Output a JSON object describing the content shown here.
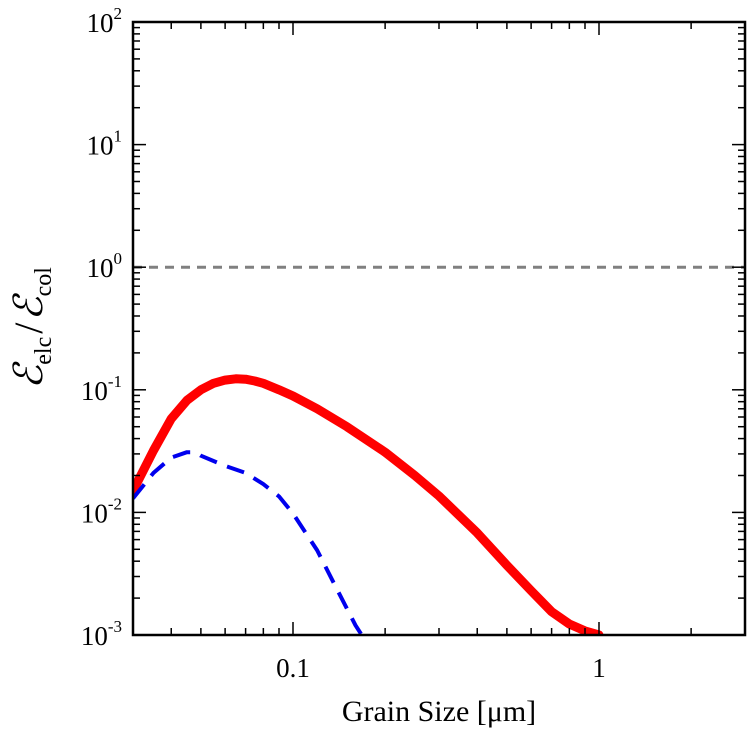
{
  "chart_data": {
    "type": "line",
    "title": "",
    "xlabel": "Grain Size [μm]",
    "ylabel": {
      "numerator": "ℰ",
      "numerator_sub": "elc",
      "slash": "/",
      "denominator": "ℰ",
      "denominator_sub": "col"
    },
    "xscale": "log",
    "yscale": "log",
    "xlim": [
      0.03,
      3
    ],
    "ylim": [
      0.001,
      100
    ],
    "grid": false,
    "x_ticks": [
      {
        "value": 0.1,
        "label": "0.1"
      },
      {
        "value": 1,
        "label": "1"
      }
    ],
    "y_ticks": [
      {
        "value": 0.001,
        "base": "10",
        "exp": "-3"
      },
      {
        "value": 0.01,
        "base": "10",
        "exp": "-2"
      },
      {
        "value": 0.1,
        "base": "10",
        "exp": "-1"
      },
      {
        "value": 1,
        "base": "10",
        "exp": "0"
      },
      {
        "value": 10,
        "base": "10",
        "exp": "1"
      },
      {
        "value": 100,
        "base": "10",
        "exp": "2"
      }
    ],
    "series": [
      {
        "name": "solid-red",
        "color": "#ff0000",
        "style": "solid",
        "x": [
          0.03,
          0.035,
          0.04,
          0.045,
          0.05,
          0.055,
          0.06,
          0.065,
          0.07,
          0.075,
          0.08,
          0.09,
          0.1,
          0.12,
          0.15,
          0.2,
          0.25,
          0.3,
          0.4,
          0.5,
          0.6,
          0.7,
          0.8,
          0.9,
          1.0
        ],
        "y": [
          0.015,
          0.032,
          0.058,
          0.082,
          0.1,
          0.113,
          0.12,
          0.123,
          0.122,
          0.118,
          0.113,
          0.1,
          0.089,
          0.07,
          0.05,
          0.031,
          0.02,
          0.0136,
          0.0068,
          0.0037,
          0.0023,
          0.00155,
          0.00123,
          0.00108,
          0.001
        ]
      },
      {
        "name": "dashed-blue",
        "color": "#0000ee",
        "style": "dashed",
        "x": [
          0.03,
          0.035,
          0.04,
          0.045,
          0.048,
          0.05,
          0.06,
          0.07,
          0.08,
          0.09,
          0.1,
          0.12,
          0.14,
          0.16,
          0.17
        ],
        "y": [
          0.013,
          0.021,
          0.028,
          0.031,
          0.031,
          0.029,
          0.024,
          0.021,
          0.017,
          0.0135,
          0.0098,
          0.0049,
          0.0023,
          0.0012,
          0.00095
        ]
      },
      {
        "name": "reference-line",
        "color": "#808080",
        "style": "dotted",
        "x": [
          0.03,
          3
        ],
        "y": [
          1,
          1
        ]
      }
    ]
  }
}
